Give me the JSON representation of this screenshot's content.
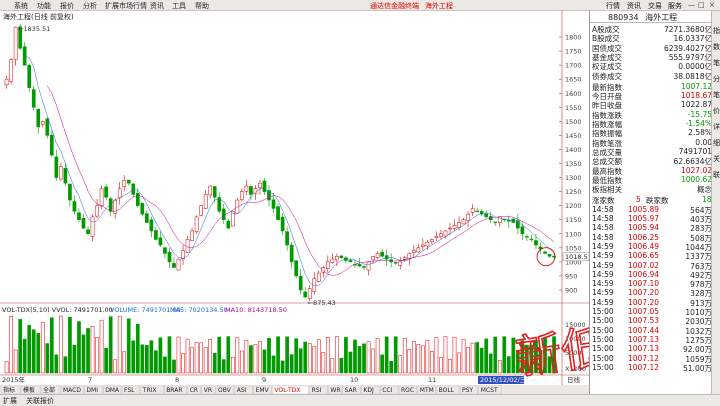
{
  "menubar": {
    "items": [
      "系统",
      "功能",
      "报价",
      "分析",
      "扩展市场行情",
      "资讯",
      "工具",
      "帮助"
    ],
    "promo": [
      "通达信金融终端",
      "海外工程"
    ],
    "tabs": [
      "行情",
      "资讯",
      "交易",
      "服务"
    ],
    "window_buttons": [
      "—",
      "□",
      "×"
    ]
  },
  "chart": {
    "title": "海外工程(日线 前复权)",
    "high_label": "1835.51",
    "low_label": "875.43",
    "last_price_tag": "1018.5",
    "price_axis": [
      "1800",
      "1750",
      "1700",
      "1650",
      "1600",
      "1550",
      "1500",
      "1450",
      "1400",
      "1350",
      "1300",
      "1250",
      "1200",
      "1150",
      "1100",
      "1050",
      "1000",
      "950",
      "900"
    ],
    "volume_axis": [
      "15000",
      "10000",
      "5000"
    ],
    "volume_unit": "X1000",
    "volume_header": {
      "prefix": "VOL-TDX(5,10) VVOL: 7491701.00",
      "volume": "VOLUME: 7491701.00",
      "ma5": "MA5: 7020134.50",
      "ma10": "MA10: 8143718.50"
    },
    "date_labels": [
      "2015年",
      "7",
      "8",
      "9",
      "10",
      "11"
    ],
    "date_tag": "2015/12/02/三",
    "period_label": "日线",
    "colors": {
      "up": "#e00000",
      "down": "#009a00",
      "ma5": "#1c6bd6",
      "ma10": "#c0008e",
      "ma20": "#c8a000"
    }
  },
  "chart_data": {
    "type": "candlestick",
    "title": "海外工程(日线 前复权)",
    "ylim": [
      875,
      1850
    ],
    "close_series": [
      1650,
      1720,
      1835,
      1760,
      1700,
      1620,
      1550,
      1480,
      1500,
      1450,
      1380,
      1300,
      1340,
      1280,
      1220,
      1180,
      1150,
      1120,
      1100,
      1160,
      1200,
      1260,
      1230,
      1180,
      1220,
      1260,
      1290,
      1280,
      1240,
      1200,
      1170,
      1140,
      1110,
      1080,
      1060,
      1030,
      1000,
      980,
      1010,
      1040,
      1080,
      1110,
      1160,
      1200,
      1240,
      1270,
      1230,
      1180,
      1150,
      1120,
      1180,
      1220,
      1250,
      1270,
      1240,
      1260,
      1280,
      1250,
      1220,
      1190,
      1150,
      1110,
      1060,
      1000,
      950,
      900,
      875,
      905,
      940,
      960,
      980,
      1000,
      1010,
      1020,
      1015,
      1005,
      1000,
      990,
      985,
      980,
      1000,
      1020,
      1030,
      1020,
      1010,
      1000,
      995,
      1000,
      1015,
      1030,
      1040,
      1050,
      1060,
      1070,
      1080,
      1090,
      1100,
      1110,
      1120,
      1130,
      1140,
      1150,
      1170,
      1190,
      1180,
      1170,
      1160,
      1150,
      1140,
      1160,
      1150,
      1145,
      1140,
      1120,
      1100,
      1090,
      1080,
      1060,
      1045,
      1030,
      1020,
      1018.5
    ]
  },
  "panel": {
    "code": "880934",
    "name": "海外工程",
    "rows": [
      {
        "label": "A股成交",
        "value": "7271.3680亿"
      },
      {
        "label": "B股成交",
        "value": "16.0337亿"
      },
      {
        "label": "国债成交",
        "value": "6239.4027亿"
      },
      {
        "label": "基金成交",
        "value": "555.9797亿"
      },
      {
        "label": "权证成交",
        "value": "0.0000亿"
      },
      {
        "label": "债券成交",
        "value": "38.0818亿"
      }
    ],
    "stats": [
      {
        "label": "最新指数",
        "value": "1007.12",
        "color": "#009a00"
      },
      {
        "label": "今日开盘",
        "value": "1018.67",
        "color": "#d00000"
      },
      {
        "label": "昨日收盘",
        "value": "1022.87",
        "color": "#222"
      },
      {
        "label": "指数涨跌",
        "value": "-15.75",
        "color": "#009a00"
      },
      {
        "label": "指数涨幅",
        "value": "-1.54%",
        "color": "#009a00"
      },
      {
        "label": "指数振幅",
        "value": "2.58%",
        "color": "#222"
      },
      {
        "label": "指数笔涨",
        "value": "0.00",
        "color": "#222"
      },
      {
        "label": "总成交量",
        "value": "7491701",
        "color": "#222"
      },
      {
        "label": "总成交额",
        "value": "62.6634亿",
        "color": "#222"
      },
      {
        "label": "最高指数",
        "value": "1027.02",
        "color": "#d00000"
      },
      {
        "label": "最低指数",
        "value": "1000.62",
        "color": "#009a00"
      },
      {
        "label": "板指相关",
        "value": "概念",
        "color": "#222"
      }
    ],
    "updown": {
      "up_label": "涨家数",
      "up_value": "5",
      "down_label": "跌家数",
      "down_value": "18"
    },
    "ticks": [
      {
        "time": "14:58",
        "price": "1005.89",
        "vol": "564万"
      },
      {
        "time": "14:58",
        "price": "1005.97",
        "vol": "403万"
      },
      {
        "time": "14:58",
        "price": "1005.94",
        "vol": "283万"
      },
      {
        "time": "14:58",
        "price": "1006.25",
        "vol": "508万"
      },
      {
        "time": "14:59",
        "price": "1006.49",
        "vol": "1044万"
      },
      {
        "time": "14:59",
        "price": "1006.65",
        "vol": "1337万"
      },
      {
        "time": "14:59",
        "price": "1007.02",
        "vol": "763万"
      },
      {
        "time": "14:59",
        "price": "1006.94",
        "vol": "492万"
      },
      {
        "time": "14:59",
        "price": "1007.10",
        "vol": "978万"
      },
      {
        "time": "14:59",
        "price": "1007.20",
        "vol": "328万"
      },
      {
        "time": "14:59",
        "price": "1007.20",
        "vol": "913万"
      },
      {
        "time": "15:00",
        "price": "1007.05",
        "vol": "1010万"
      },
      {
        "time": "15:00",
        "price": "1007.53",
        "vol": "2030万"
      },
      {
        "time": "15:00",
        "price": "1007.44",
        "vol": "1032万"
      },
      {
        "time": "15:00",
        "price": "1007.13",
        "vol": "1275万"
      },
      {
        "time": "15:00",
        "price": "1007.13",
        "vol": "92.00万"
      },
      {
        "time": "15:00",
        "price": "1007.12",
        "vol": "1059万"
      },
      {
        "time": "15:00",
        "price": "1007.12",
        "vol": "51.00万"
      }
    ]
  },
  "vertical_tabs": [
    "指",
    "数",
    "笔",
    "分",
    "笔",
    "价",
    "详",
    "细",
    "关",
    "联"
  ],
  "indicator_tabs": [
    "指标",
    "模板",
    "全部",
    "MACD",
    "DMI",
    "DMA",
    "FSL",
    "TRIX",
    "BRAR",
    "CR",
    "VR",
    "OBV",
    "ASI",
    "EMV",
    "VOL-TDX",
    "RSI",
    "WR",
    "SAR",
    "KDJ",
    "CCI",
    "ROC",
    "MTM",
    "BOLL",
    "PSY",
    "MCST"
  ],
  "bottom_tabs": [
    "扩展",
    "关联报价"
  ],
  "watermark": "新低"
}
